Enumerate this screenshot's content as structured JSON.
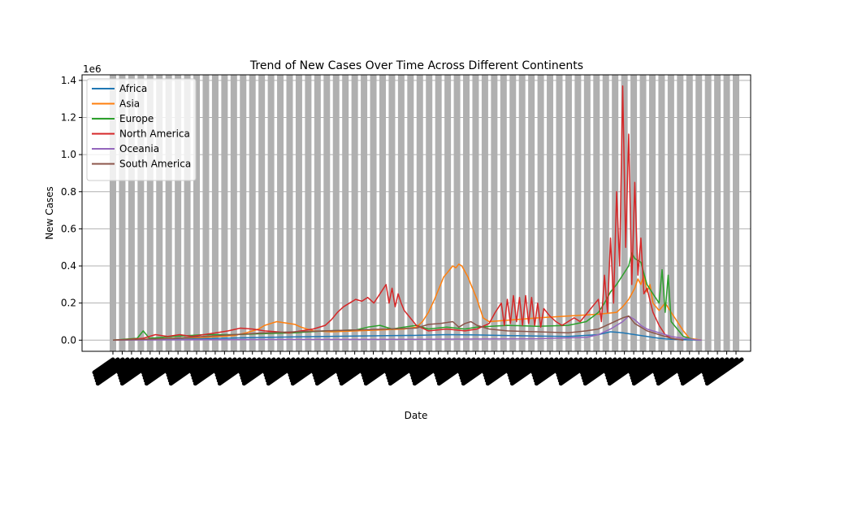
{
  "chart_data": {
    "type": "line",
    "title": "Trend of New Cases Over Time Across Different Continents",
    "xlabel": "Date",
    "ylabel": "New Cases",
    "y_multiplier": "1e6",
    "ylim": [
      -0.06,
      1.43
    ],
    "yticks": [
      "0.0",
      "0.2",
      "0.4",
      "0.6",
      "0.8",
      "1.0",
      "1.2",
      "1.4"
    ],
    "ytick_values": [
      0.0,
      0.2,
      0.4,
      0.6,
      0.8,
      1.0,
      1.2,
      1.4
    ],
    "x_range": [
      0,
      100
    ],
    "grid": true,
    "legend_position": "top-left",
    "series": [
      {
        "name": "Africa",
        "color": "#1f77b4",
        "points": [
          [
            0,
            0
          ],
          [
            5,
            0.003
          ],
          [
            10,
            0.005
          ],
          [
            15,
            0.008
          ],
          [
            20,
            0.012
          ],
          [
            25,
            0.015
          ],
          [
            30,
            0.018
          ],
          [
            35,
            0.02
          ],
          [
            40,
            0.022
          ],
          [
            45,
            0.024
          ],
          [
            50,
            0.026
          ],
          [
            55,
            0.03
          ],
          [
            60,
            0.028
          ],
          [
            65,
            0.025
          ],
          [
            70,
            0.022
          ],
          [
            75,
            0.02
          ],
          [
            80,
            0.03
          ],
          [
            82,
            0.045
          ],
          [
            84,
            0.04
          ],
          [
            86,
            0.03
          ],
          [
            88,
            0.02
          ],
          [
            90,
            0.01
          ],
          [
            92,
            0.005
          ],
          [
            95,
            0.002
          ],
          [
            97,
            0
          ]
        ]
      },
      {
        "name": "Asia",
        "color": "#ff7f0e",
        "points": [
          [
            0,
            0
          ],
          [
            5,
            0.005
          ],
          [
            10,
            0.01
          ],
          [
            15,
            0.015
          ],
          [
            20,
            0.025
          ],
          [
            22,
            0.04
          ],
          [
            24,
            0.06
          ],
          [
            25,
            0.08
          ],
          [
            26,
            0.09
          ],
          [
            27,
            0.1
          ],
          [
            28,
            0.095
          ],
          [
            29,
            0.09
          ],
          [
            30,
            0.085
          ],
          [
            31,
            0.07
          ],
          [
            32,
            0.06
          ],
          [
            33,
            0.05
          ],
          [
            36,
            0.045
          ],
          [
            40,
            0.05
          ],
          [
            44,
            0.055
          ],
          [
            48,
            0.06
          ],
          [
            50,
            0.07
          ],
          [
            51,
            0.1
          ],
          [
            52,
            0.15
          ],
          [
            53,
            0.22
          ],
          [
            53.5,
            0.26
          ],
          [
            54,
            0.3
          ],
          [
            54.5,
            0.34
          ],
          [
            55,
            0.36
          ],
          [
            55.5,
            0.38
          ],
          [
            56,
            0.4
          ],
          [
            56.5,
            0.39
          ],
          [
            57,
            0.41
          ],
          [
            57.5,
            0.4
          ],
          [
            58,
            0.37
          ],
          [
            58.5,
            0.34
          ],
          [
            59,
            0.3
          ],
          [
            59.5,
            0.26
          ],
          [
            60,
            0.22
          ],
          [
            60.5,
            0.17
          ],
          [
            61,
            0.12
          ],
          [
            62,
            0.1
          ],
          [
            66,
            0.11
          ],
          [
            70,
            0.12
          ],
          [
            75,
            0.13
          ],
          [
            80,
            0.14
          ],
          [
            83,
            0.15
          ],
          [
            84,
            0.18
          ],
          [
            85,
            0.22
          ],
          [
            86,
            0.28
          ],
          [
            86.5,
            0.33
          ],
          [
            87,
            0.3
          ],
          [
            87.5,
            0.35
          ],
          [
            88,
            0.26
          ],
          [
            88.5,
            0.3
          ],
          [
            89,
            0.2
          ],
          [
            90,
            0.16
          ],
          [
            91,
            0.2
          ],
          [
            92,
            0.15
          ],
          [
            93,
            0.1
          ],
          [
            94,
            0.05
          ],
          [
            95,
            0.01
          ],
          [
            97,
            0
          ]
        ]
      },
      {
        "name": "Europe",
        "color": "#2ca02c",
        "points": [
          [
            0,
            0
          ],
          [
            4,
            0.01
          ],
          [
            5,
            0.05
          ],
          [
            6,
            0.01
          ],
          [
            10,
            0.02
          ],
          [
            15,
            0.03
          ],
          [
            20,
            0.03
          ],
          [
            25,
            0.035
          ],
          [
            30,
            0.04
          ],
          [
            35,
            0.05
          ],
          [
            40,
            0.055
          ],
          [
            42,
            0.07
          ],
          [
            44,
            0.08
          ],
          [
            46,
            0.06
          ],
          [
            48,
            0.07
          ],
          [
            50,
            0.08
          ],
          [
            52,
            0.06
          ],
          [
            55,
            0.07
          ],
          [
            58,
            0.06
          ],
          [
            60,
            0.07
          ],
          [
            65,
            0.08
          ],
          [
            70,
            0.075
          ],
          [
            75,
            0.08
          ],
          [
            78,
            0.1
          ],
          [
            80,
            0.15
          ],
          [
            81,
            0.2
          ],
          [
            82,
            0.26
          ],
          [
            83,
            0.3
          ],
          [
            84,
            0.35
          ],
          [
            85,
            0.4
          ],
          [
            85.5,
            0.47
          ],
          [
            86,
            0.44
          ],
          [
            87,
            0.42
          ],
          [
            88,
            0.3
          ],
          [
            89,
            0.25
          ],
          [
            90,
            0.2
          ],
          [
            90.5,
            0.38
          ],
          [
            91,
            0.15
          ],
          [
            91.5,
            0.35
          ],
          [
            92,
            0.1
          ],
          [
            93,
            0.06
          ],
          [
            94,
            0.02
          ],
          [
            96,
            0
          ]
        ]
      },
      {
        "name": "North America",
        "color": "#d62728",
        "points": [
          [
            0,
            0
          ],
          [
            3,
            0.005
          ],
          [
            5,
            0.01
          ],
          [
            7,
            0.03
          ],
          [
            9,
            0.02
          ],
          [
            11,
            0.03
          ],
          [
            13,
            0.02
          ],
          [
            15,
            0.03
          ],
          [
            17,
            0.04
          ],
          [
            19,
            0.05
          ],
          [
            21,
            0.065
          ],
          [
            23,
            0.06
          ],
          [
            25,
            0.05
          ],
          [
            27,
            0.045
          ],
          [
            29,
            0.04
          ],
          [
            31,
            0.05
          ],
          [
            33,
            0.06
          ],
          [
            35,
            0.08
          ],
          [
            36,
            0.11
          ],
          [
            37,
            0.15
          ],
          [
            38,
            0.18
          ],
          [
            39,
            0.2
          ],
          [
            40,
            0.22
          ],
          [
            41,
            0.21
          ],
          [
            42,
            0.23
          ],
          [
            43,
            0.2
          ],
          [
            44,
            0.25
          ],
          [
            45,
            0.3
          ],
          [
            45.5,
            0.2
          ],
          [
            46,
            0.28
          ],
          [
            46.5,
            0.18
          ],
          [
            47,
            0.25
          ],
          [
            47.5,
            0.2
          ],
          [
            48,
            0.16
          ],
          [
            49,
            0.12
          ],
          [
            50,
            0.08
          ],
          [
            52,
            0.05
          ],
          [
            55,
            0.06
          ],
          [
            58,
            0.05
          ],
          [
            60,
            0.06
          ],
          [
            62,
            0.09
          ],
          [
            63,
            0.15
          ],
          [
            64,
            0.2
          ],
          [
            64.5,
            0.08
          ],
          [
            65,
            0.22
          ],
          [
            65.5,
            0.09
          ],
          [
            66,
            0.24
          ],
          [
            66.5,
            0.1
          ],
          [
            67,
            0.23
          ],
          [
            67.5,
            0.08
          ],
          [
            68,
            0.24
          ],
          [
            68.5,
            0.09
          ],
          [
            69,
            0.23
          ],
          [
            69.5,
            0.08
          ],
          [
            70,
            0.2
          ],
          [
            70.5,
            0.07
          ],
          [
            71,
            0.17
          ],
          [
            72,
            0.13
          ],
          [
            73,
            0.1
          ],
          [
            74,
            0.08
          ],
          [
            75,
            0.1
          ],
          [
            76,
            0.12
          ],
          [
            77,
            0.1
          ],
          [
            78,
            0.14
          ],
          [
            79,
            0.18
          ],
          [
            80,
            0.22
          ],
          [
            80.5,
            0.1
          ],
          [
            81,
            0.35
          ],
          [
            81.5,
            0.15
          ],
          [
            82,
            0.55
          ],
          [
            82.5,
            0.2
          ],
          [
            83,
            0.8
          ],
          [
            83.5,
            0.4
          ],
          [
            84,
            1.37
          ],
          [
            84.5,
            0.5
          ],
          [
            85,
            1.11
          ],
          [
            85.5,
            0.3
          ],
          [
            86,
            0.85
          ],
          [
            86.5,
            0.35
          ],
          [
            87,
            0.55
          ],
          [
            87.5,
            0.25
          ],
          [
            88,
            0.28
          ],
          [
            89,
            0.15
          ],
          [
            90,
            0.08
          ],
          [
            91,
            0.03
          ],
          [
            92,
            0.01
          ],
          [
            94,
            0
          ]
        ]
      },
      {
        "name": "Oceania",
        "color": "#9467bd",
        "points": [
          [
            0,
            0
          ],
          [
            10,
            0.002
          ],
          [
            20,
            0.003
          ],
          [
            30,
            0.004
          ],
          [
            40,
            0.004
          ],
          [
            50,
            0.005
          ],
          [
            60,
            0.006
          ],
          [
            70,
            0.008
          ],
          [
            78,
            0.015
          ],
          [
            80,
            0.03
          ],
          [
            82,
            0.06
          ],
          [
            84,
            0.1
          ],
          [
            85,
            0.13
          ],
          [
            86,
            0.11
          ],
          [
            87,
            0.08
          ],
          [
            88,
            0.06
          ],
          [
            90,
            0.04
          ],
          [
            92,
            0.02
          ],
          [
            94,
            0.01
          ],
          [
            96,
            0.002
          ],
          [
            97,
            0
          ]
        ]
      },
      {
        "name": "South America",
        "color": "#8c564b",
        "points": [
          [
            0,
            0
          ],
          [
            5,
            0.005
          ],
          [
            10,
            0.01
          ],
          [
            15,
            0.02
          ],
          [
            20,
            0.03
          ],
          [
            25,
            0.04
          ],
          [
            30,
            0.045
          ],
          [
            35,
            0.05
          ],
          [
            40,
            0.055
          ],
          [
            45,
            0.06
          ],
          [
            50,
            0.065
          ],
          [
            52,
            0.085
          ],
          [
            54,
            0.09
          ],
          [
            56,
            0.1
          ],
          [
            57,
            0.07
          ],
          [
            58,
            0.09
          ],
          [
            59,
            0.1
          ],
          [
            60,
            0.08
          ],
          [
            62,
            0.06
          ],
          [
            65,
            0.05
          ],
          [
            70,
            0.045
          ],
          [
            75,
            0.04
          ],
          [
            78,
            0.05
          ],
          [
            80,
            0.06
          ],
          [
            82,
            0.09
          ],
          [
            84,
            0.12
          ],
          [
            85,
            0.13
          ],
          [
            86,
            0.09
          ],
          [
            87,
            0.07
          ],
          [
            88,
            0.05
          ],
          [
            90,
            0.03
          ],
          [
            92,
            0.01
          ],
          [
            94,
            0
          ]
        ]
      }
    ]
  }
}
